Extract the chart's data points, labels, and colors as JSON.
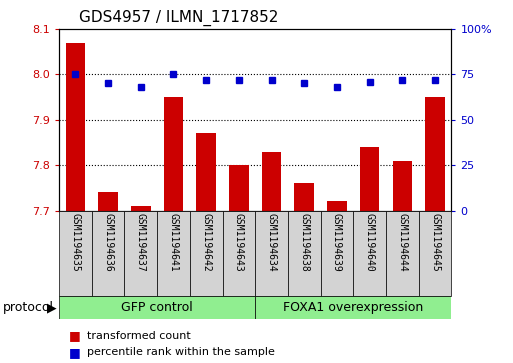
{
  "title": "GDS4957 / ILMN_1717852",
  "samples": [
    "GSM1194635",
    "GSM1194636",
    "GSM1194637",
    "GSM1194641",
    "GSM1194642",
    "GSM1194643",
    "GSM1194634",
    "GSM1194638",
    "GSM1194639",
    "GSM1194640",
    "GSM1194644",
    "GSM1194645"
  ],
  "bar_values": [
    8.07,
    7.74,
    7.71,
    7.95,
    7.87,
    7.8,
    7.83,
    7.76,
    7.72,
    7.84,
    7.81,
    7.95
  ],
  "percentile_values": [
    75,
    70,
    68,
    75,
    72,
    72,
    72,
    70,
    68,
    71,
    72,
    72
  ],
  "bar_color": "#cc0000",
  "dot_color": "#0000cc",
  "ylim_left": [
    7.7,
    8.1
  ],
  "ylim_right": [
    0,
    100
  ],
  "yticks_left": [
    7.7,
    7.8,
    7.9,
    8.0,
    8.1
  ],
  "yticks_right": [
    0,
    25,
    50,
    75,
    100
  ],
  "ytick_labels_right": [
    "0",
    "25",
    "50",
    "75",
    "100%"
  ],
  "hlines": [
    7.8,
    7.9,
    8.0
  ],
  "group1_label": "GFP control",
  "group2_label": "FOXA1 overexpression",
  "group1_count": 6,
  "group2_count": 6,
  "protocol_label": "protocol",
  "legend1_label": "transformed count",
  "legend2_label": "percentile rank within the sample",
  "cell_color": "#d3d3d3",
  "group_bg": "#90ee90",
  "plot_bg": "#ffffff"
}
